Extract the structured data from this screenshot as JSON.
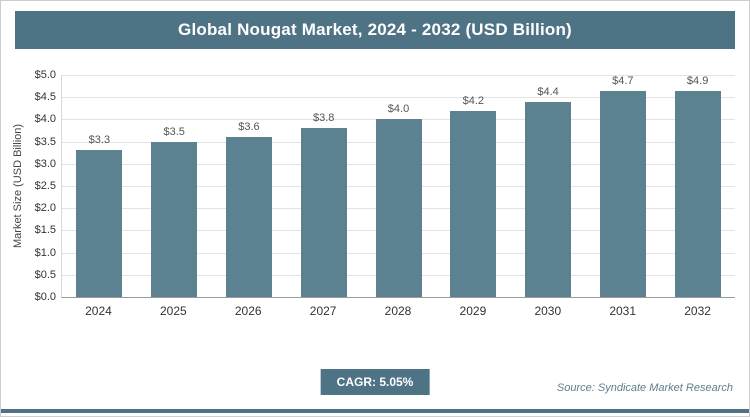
{
  "header": {
    "title": "Global Nougat Market, 2024 - 2032 (USD Billion)"
  },
  "chart_data": {
    "type": "bar",
    "title": "Global Nougat Market, 2024 - 2032 (USD Billion)",
    "categories": [
      "2024",
      "2025",
      "2026",
      "2027",
      "2028",
      "2029",
      "2030",
      "2031",
      "2032"
    ],
    "values": [
      3.3,
      3.5,
      3.6,
      3.8,
      4.0,
      4.2,
      4.4,
      4.7,
      4.9
    ],
    "value_labels": [
      "$3.3",
      "$3.5",
      "$3.6",
      "$3.8",
      "$4.0",
      "$4.2",
      "$4.4",
      "$4.7",
      "$4.9"
    ],
    "xlabel": "",
    "ylabel": "Market Size (USD Billion)",
    "ylim": [
      0,
      5
    ],
    "ytick_step": 0.5,
    "ytick_labels": [
      "$0.0",
      "$0.5",
      "$1.0",
      "$1.5",
      "$2.0",
      "$2.5",
      "$3.0",
      "$3.5",
      "$4.0",
      "$4.5",
      "$5.0"
    ],
    "grid": true,
    "legend_position": "none"
  },
  "footer": {
    "cagr": "CAGR: 5.05%",
    "source": "Source: Syndicate Market Research"
  },
  "colors": {
    "accent": "#4e7385",
    "bar": "#5c8191",
    "gridline": "#e3e3e3"
  }
}
